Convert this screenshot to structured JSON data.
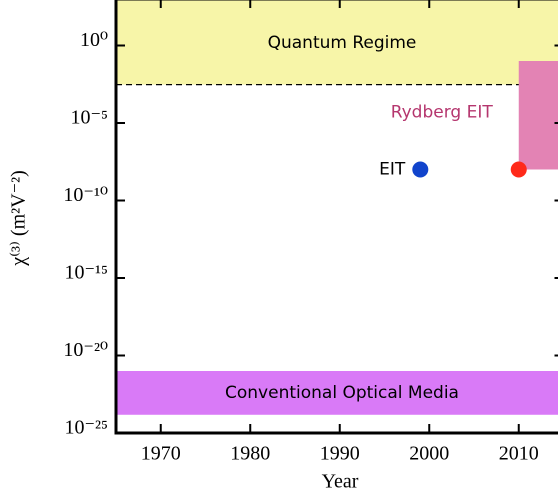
{
  "chart_data": {
    "type": "scatter",
    "xlabel": "Year",
    "ylabel": "χ⁽³⁾ (m²V⁻²)",
    "xlim": [
      1965,
      2015
    ],
    "ylim": [
      1e-25,
      1000
    ],
    "log_y": true,
    "xticks": [
      1970,
      1980,
      1990,
      2000,
      2010
    ],
    "yticks": [
      {
        "value": 1,
        "label": "10⁰"
      },
      {
        "value": 1e-05,
        "label": "10⁻⁵"
      },
      {
        "value": 1e-10,
        "label": "10⁻¹⁰"
      },
      {
        "value": 1e-15,
        "label": "10⁻¹⁵"
      },
      {
        "value": 1e-20,
        "label": "10⁻²⁰"
      },
      {
        "value": 1e-25,
        "label": "10⁻²⁵"
      }
    ],
    "regions": [
      {
        "label": "Quantum Regime",
        "color": "#f7f5a8",
        "xrange": [
          1965,
          2015
        ],
        "yrange": [
          0.003,
          1000
        ],
        "dashed_edge": true
      },
      {
        "label": "Conventional Optical Media",
        "color": "#d97af7",
        "xrange": [
          1965,
          2015
        ],
        "yrange": [
          1.5e-24,
          1e-21
        ]
      },
      {
        "label": "Rydberg EIT",
        "color": "#e383b4",
        "label_color": "#b5366e",
        "xrange": [
          2010,
          2015
        ],
        "yrange": [
          1e-08,
          0.1
        ]
      }
    ],
    "series": [
      {
        "name": "EIT",
        "color": "#1144cc",
        "x": [
          1999
        ],
        "values": [
          1e-08
        ]
      },
      {
        "color": "#ff2a1a",
        "x": [
          2010
        ],
        "values": [
          1e-08
        ]
      }
    ]
  }
}
